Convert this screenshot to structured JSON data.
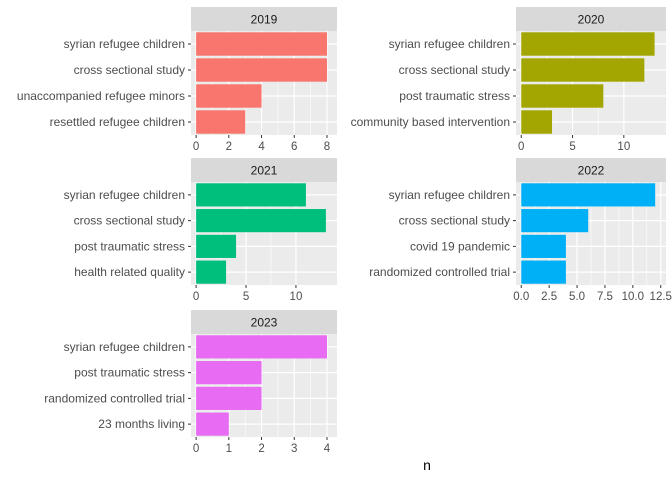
{
  "chart_data": {
    "type": "bar",
    "orientation": "horizontal",
    "xlabel": "n",
    "ylabel": "",
    "grid": true,
    "legend": "none",
    "panels": [
      {
        "title": "2019",
        "color": "#F8766D",
        "categories": [
          "syrian refugee children",
          "cross sectional study",
          "unaccompanied refugee minors",
          "resettled refugee children"
        ],
        "values": [
          8,
          8,
          4,
          3
        ],
        "xlim": [
          0,
          8.3
        ],
        "ticks": [
          0,
          2,
          4,
          6,
          8
        ],
        "tick_labels": [
          "0",
          "2",
          "4",
          "6",
          "8"
        ]
      },
      {
        "title": "2020",
        "color": "#A3A500",
        "categories": [
          "syrian refugee children",
          "cross sectional study",
          "post traumatic stress",
          "community based intervention"
        ],
        "values": [
          13,
          12,
          8,
          3
        ],
        "xlim": [
          0,
          13.6
        ],
        "ticks": [
          0,
          5,
          10
        ],
        "tick_labels": [
          "0",
          "5",
          "10"
        ]
      },
      {
        "title": "2021",
        "color": "#00BF7D",
        "categories": [
          "syrian refugee children",
          "cross sectional study",
          "post traumatic stress",
          "health related quality"
        ],
        "values": [
          11,
          13,
          4,
          3
        ],
        "xlim": [
          0,
          13.6
        ],
        "ticks": [
          0,
          5,
          10
        ],
        "tick_labels": [
          "0",
          "5",
          "10"
        ]
      },
      {
        "title": "2022",
        "color": "#00B0F6",
        "categories": [
          "syrian refugee children",
          "cross sectional study",
          "covid 19 pandemic",
          "randomized controlled trial"
        ],
        "values": [
          12,
          6,
          4,
          4
        ],
        "xlim": [
          0,
          12.5
        ],
        "ticks": [
          0,
          2.5,
          5,
          7.5,
          10,
          12.5
        ],
        "tick_labels": [
          "0.0",
          "2.5",
          "5.0",
          "7.5",
          "10.0",
          "12.5"
        ]
      },
      {
        "title": "2023",
        "color": "#E76BF3",
        "categories": [
          "syrian refugee children",
          "post traumatic stress",
          "randomized controlled trial",
          "23 months living"
        ],
        "values": [
          4,
          2,
          2,
          1
        ],
        "xlim": [
          0,
          4.15
        ],
        "ticks": [
          0,
          1,
          2,
          3,
          4
        ],
        "tick_labels": [
          "0",
          "1",
          "2",
          "3",
          "4"
        ]
      }
    ]
  }
}
